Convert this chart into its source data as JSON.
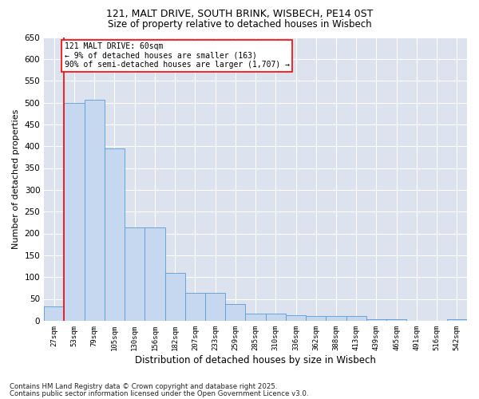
{
  "title1": "121, MALT DRIVE, SOUTH BRINK, WISBECH, PE14 0ST",
  "title2": "Size of property relative to detached houses in Wisbech",
  "xlabel": "Distribution of detached houses by size in Wisbech",
  "ylabel": "Number of detached properties",
  "categories": [
    "27sqm",
    "53sqm",
    "79sqm",
    "105sqm",
    "130sqm",
    "156sqm",
    "182sqm",
    "207sqm",
    "233sqm",
    "259sqm",
    "285sqm",
    "310sqm",
    "336sqm",
    "362sqm",
    "388sqm",
    "413sqm",
    "439sqm",
    "465sqm",
    "491sqm",
    "516sqm",
    "542sqm"
  ],
  "values": [
    32,
    500,
    507,
    395,
    213,
    213,
    110,
    63,
    63,
    38,
    17,
    16,
    12,
    10,
    10,
    10,
    3,
    3,
    0,
    0,
    4
  ],
  "bar_color": "#c5d8ef",
  "bar_edge_color": "#5b9bd5",
  "background_color": "#dce3ee",
  "annotation_line1": "121 MALT DRIVE: 60sqm",
  "annotation_line2": "← 9% of detached houses are smaller (163)",
  "annotation_line3": "90% of semi-detached houses are larger (1,707) →",
  "red_line_x": 0.5,
  "y_max": 650,
  "y_ticks": [
    0,
    50,
    100,
    150,
    200,
    250,
    300,
    350,
    400,
    450,
    500,
    550,
    600,
    650
  ],
  "footer1": "Contains HM Land Registry data © Crown copyright and database right 2025.",
  "footer2": "Contains public sector information licensed under the Open Government Licence v3.0."
}
